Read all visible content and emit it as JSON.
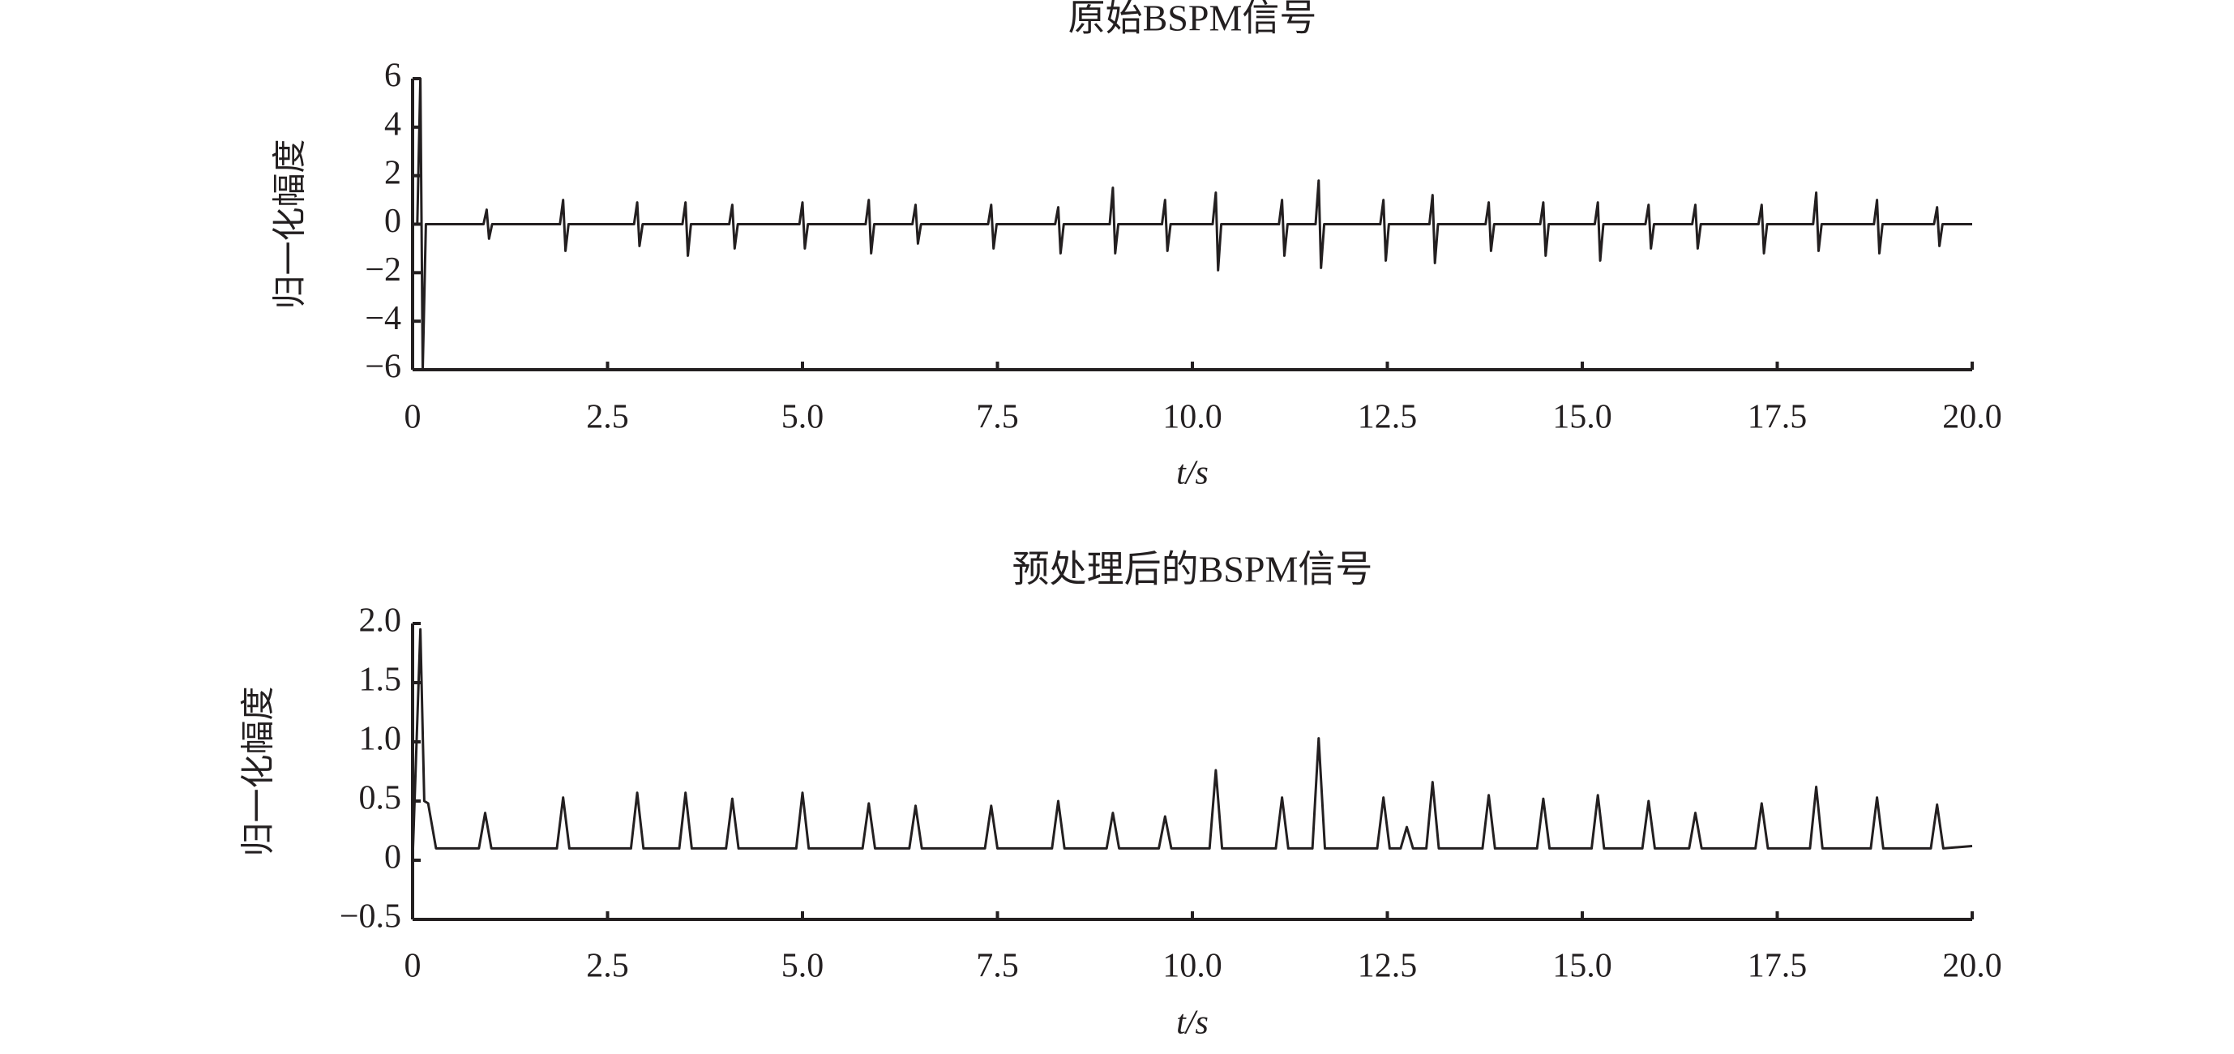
{
  "chart_data": [
    {
      "type": "line",
      "title": "原始BSPM信号",
      "xlabel": "t/s",
      "ylabel": "归一化幅度",
      "color": "#231f20",
      "x": [
        0,
        0.06,
        0.1,
        0.13,
        0.17,
        0.91,
        0.95,
        0.98,
        1.02,
        1.89,
        1.93,
        1.96,
        2,
        2.84,
        2.88,
        2.91,
        2.95,
        3.46,
        3.5,
        3.53,
        3.57,
        4.06,
        4.1,
        4.13,
        4.17,
        4.96,
        5,
        5.03,
        5.07,
        5.81,
        5.85,
        5.88,
        5.92,
        6.41,
        6.45,
        6.48,
        6.52,
        7.38,
        7.42,
        7.45,
        7.49,
        8.24,
        8.28,
        8.31,
        8.35,
        8.94,
        8.98,
        9.01,
        9.05,
        9.61,
        9.65,
        9.68,
        9.72,
        10.26,
        10.3,
        10.33,
        10.37,
        11.11,
        11.15,
        11.18,
        11.22,
        11.58,
        11.62,
        11.65,
        11.69,
        12.41,
        12.45,
        12.48,
        12.52,
        13.04,
        13.08,
        13.11,
        13.15,
        13.76,
        13.8,
        13.83,
        13.87,
        14.46,
        14.5,
        14.53,
        14.57,
        15.16,
        15.2,
        15.23,
        15.27,
        15.81,
        15.85,
        15.88,
        15.92,
        16.41,
        16.45,
        16.48,
        16.52,
        17.26,
        17.3,
        17.33,
        17.37,
        17.96,
        18,
        18.03,
        18.07,
        18.74,
        18.78,
        18.81,
        18.85,
        19.51,
        19.55,
        19.58,
        19.62,
        20
      ],
      "values": [
        0,
        0,
        6,
        -6,
        0,
        0,
        0.6,
        -0.6,
        0,
        0,
        1.0,
        -1.1,
        0,
        0,
        0.9,
        -0.9,
        0,
        0,
        0.9,
        -1.3,
        0,
        0,
        0.8,
        -1.0,
        0,
        0,
        0.9,
        -1.0,
        0,
        0,
        1.0,
        -1.2,
        0,
        0,
        0.8,
        -0.8,
        0,
        0,
        0.8,
        -1.0,
        0,
        0,
        0.7,
        -1.2,
        0,
        0,
        1.5,
        -1.2,
        0,
        0,
        1.0,
        -1.1,
        0,
        0,
        1.3,
        -1.9,
        0,
        0,
        1.0,
        -1.3,
        0,
        0,
        1.8,
        -1.8,
        0,
        0,
        1.0,
        -1.5,
        0,
        0,
        1.2,
        -1.6,
        0,
        0,
        0.9,
        -1.1,
        0,
        0,
        0.9,
        -1.3,
        0,
        0,
        0.9,
        -1.5,
        0,
        0,
        0.8,
        -1.0,
        0,
        0,
        0.8,
        -1.0,
        0,
        0,
        0.8,
        -1.2,
        0,
        0,
        1.3,
        -1.1,
        0,
        0,
        1.0,
        -1.2,
        0,
        0,
        0.7,
        -0.9,
        0,
        0
      ],
      "xlim": [
        0,
        20
      ],
      "ylim": [
        -6,
        6
      ],
      "xticks": [
        0,
        2.5,
        {
          "value": 5,
          "label": "5.0"
        },
        7.5,
        {
          "value": 10,
          "label": "10.0"
        },
        12.5,
        {
          "value": 15,
          "label": "15.0"
        },
        17.5,
        {
          "value": 20,
          "label": "20.0"
        }
      ],
      "yticks": [
        6,
        4,
        2,
        0,
        {
          "value": -2,
          "label": "−2"
        },
        {
          "value": -4,
          "label": "−4"
        },
        {
          "value": -6,
          "label": "−6"
        }
      ]
    },
    {
      "type": "line",
      "title": "预处理后的BSPM信号",
      "xlabel": "t/s",
      "ylabel": "归一化幅度",
      "color": "#231f20",
      "x": [
        0,
        0.1,
        0.15,
        0.2,
        0.3,
        0.85,
        0.93,
        1.01,
        1.85,
        1.93,
        2.01,
        2.8,
        2.88,
        2.96,
        3.42,
        3.5,
        3.58,
        4.02,
        4.1,
        4.18,
        4.92,
        5,
        5.08,
        5.77,
        5.85,
        5.93,
        6.37,
        6.45,
        6.53,
        7.34,
        7.42,
        7.5,
        8.2,
        8.28,
        8.36,
        8.9,
        8.98,
        9.06,
        9.57,
        9.65,
        9.73,
        10.22,
        10.3,
        10.38,
        11.07,
        11.15,
        11.23,
        11.54,
        11.62,
        11.7,
        12.37,
        12.45,
        12.53,
        12.67,
        12.75,
        12.83,
        13,
        13.08,
        13.16,
        13.72,
        13.8,
        13.88,
        14.42,
        14.5,
        14.58,
        15.12,
        15.2,
        15.28,
        15.77,
        15.85,
        15.93,
        16.37,
        16.45,
        16.53,
        17.22,
        17.3,
        17.38,
        17.92,
        18,
        18.08,
        18.7,
        18.78,
        18.86,
        19.47,
        19.55,
        19.63,
        20
      ],
      "values": [
        0,
        1.95,
        0.5,
        0.48,
        0.1,
        0.1,
        0.4,
        0.1,
        0.1,
        0.53,
        0.1,
        0.1,
        0.57,
        0.1,
        0.1,
        0.57,
        0.1,
        0.1,
        0.52,
        0.1,
        0.1,
        0.57,
        0.1,
        0.1,
        0.48,
        0.1,
        0.1,
        0.46,
        0.1,
        0.1,
        0.46,
        0.1,
        0.1,
        0.5,
        0.1,
        0.1,
        0.4,
        0.1,
        0.1,
        0.37,
        0.1,
        0.1,
        0.76,
        0.1,
        0.1,
        0.53,
        0.1,
        0.1,
        1.03,
        0.1,
        0.1,
        0.53,
        0.1,
        0.1,
        0.28,
        0.1,
        0.1,
        0.66,
        0.1,
        0.1,
        0.55,
        0.1,
        0.1,
        0.52,
        0.1,
        0.1,
        0.55,
        0.1,
        0.1,
        0.5,
        0.1,
        0.1,
        0.4,
        0.1,
        0.1,
        0.48,
        0.1,
        0.1,
        0.62,
        0.1,
        0.1,
        0.53,
        0.1,
        0.1,
        0.47,
        0.1,
        0.12
      ],
      "xlim": [
        0,
        20
      ],
      "ylim": [
        -0.5,
        2
      ],
      "xticks": [
        0,
        2.5,
        {
          "value": 5,
          "label": "5.0"
        },
        7.5,
        {
          "value": 10,
          "label": "10.0"
        },
        12.5,
        {
          "value": 15,
          "label": "15.0"
        },
        17.5,
        {
          "value": 20,
          "label": "20.0"
        }
      ],
      "yticks": [
        {
          "value": 2,
          "label": "2.0"
        },
        1.5,
        {
          "value": 1,
          "label": "1.0"
        },
        0.5,
        0,
        {
          "value": -0.5,
          "label": "−0.5"
        }
      ]
    }
  ]
}
